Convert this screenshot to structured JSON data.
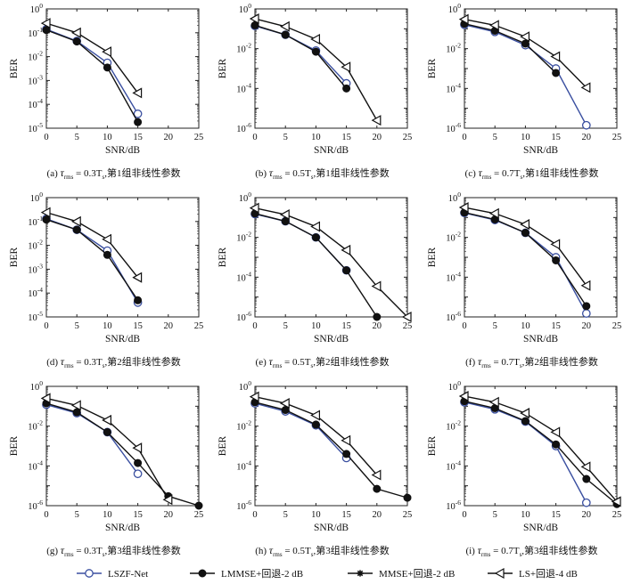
{
  "labels": {
    "ylabel": "BER",
    "xlabel": "SNR/dB"
  },
  "legend": [
    {
      "name": "LSZF-Net",
      "marker": "circle-open",
      "color": "#3a4fa0"
    },
    {
      "name": "LMMSE+回退-2 dB",
      "marker": "circle-filled",
      "color": "#111111"
    },
    {
      "name": "MMSE+回退-2 dB",
      "marker": "star",
      "color": "#111111"
    },
    {
      "name": "LS+回退-4 dB",
      "marker": "triangle-left",
      "color": "#111111"
    }
  ],
  "chart_data": [
    {
      "type": "line",
      "panel": "a",
      "caption": {
        "prefix": "(a) ",
        "tau": "τ",
        "sub": "rms",
        "eq": " = 0.3T",
        "ts": "s",
        "suffix": ",第1组非线性参数"
      },
      "x": [
        0,
        5,
        10,
        15,
        20,
        25
      ],
      "xlim": [
        0,
        25
      ],
      "xticks": [
        0,
        5,
        10,
        15,
        20,
        25
      ],
      "ylim_exp": [
        -5,
        0
      ],
      "ytick_exps": [
        -5,
        -4,
        -3,
        -2,
        -1,
        0
      ],
      "series": [
        {
          "name": "LSZF-Net",
          "values": [
            0.14,
            0.045,
            0.0055,
            4e-05,
            null,
            null
          ]
        },
        {
          "name": "LMMSE+回退-2 dB",
          "values": [
            0.13,
            0.043,
            0.0035,
            1.8e-05,
            null,
            null
          ]
        },
        {
          "name": "LS+回退-4 dB",
          "values": [
            0.25,
            0.1,
            0.016,
            0.0003,
            null,
            null
          ]
        }
      ]
    },
    {
      "type": "line",
      "panel": "b",
      "caption": {
        "prefix": "(b) ",
        "tau": "τ",
        "sub": "rms",
        "eq": " = 0.5T",
        "ts": "s",
        "suffix": ",第1组非线性参数"
      },
      "x": [
        0,
        5,
        10,
        15,
        20,
        25
      ],
      "xlim": [
        0,
        25
      ],
      "xticks": [
        0,
        5,
        10,
        15,
        20,
        25
      ],
      "ylim_exp": [
        -6,
        0
      ],
      "ytick_exps": [
        -6,
        -4,
        -2,
        0
      ],
      "series": [
        {
          "name": "LSZF-Net",
          "values": [
            0.14,
            0.05,
            0.008,
            0.00018,
            null,
            null
          ]
        },
        {
          "name": "LMMSE+回退-2 dB",
          "values": [
            0.15,
            0.05,
            0.007,
            0.0001,
            null,
            null
          ]
        },
        {
          "name": "LS+回退-4 dB",
          "values": [
            0.32,
            0.13,
            0.03,
            0.0012,
            2.5e-06,
            null
          ]
        }
      ]
    },
    {
      "type": "line",
      "panel": "c",
      "caption": {
        "prefix": "(c) ",
        "tau": "τ",
        "sub": "rms",
        "eq": " = 0.7T",
        "ts": "s",
        "suffix": ",第1组非线性参数"
      },
      "x": [
        0,
        5,
        10,
        15,
        20,
        25
      ],
      "xlim": [
        0,
        25
      ],
      "xticks": [
        0,
        5,
        10,
        15,
        20,
        25
      ],
      "ylim_exp": [
        -6,
        0
      ],
      "ytick_exps": [
        -6,
        -4,
        -2,
        0
      ],
      "series": [
        {
          "name": "LSZF-Net",
          "values": [
            0.16,
            0.07,
            0.015,
            0.001,
            1.4e-06,
            null
          ]
        },
        {
          "name": "LMMSE+回退-2 dB",
          "values": [
            0.18,
            0.08,
            0.018,
            0.0006,
            null,
            null
          ]
        },
        {
          "name": "LS+回退-4 dB",
          "values": [
            0.3,
            0.15,
            0.04,
            0.004,
            0.00011,
            null
          ]
        }
      ]
    },
    {
      "type": "line",
      "panel": "d",
      "caption": {
        "prefix": "(d) ",
        "tau": "τ",
        "sub": "rms",
        "eq": " = 0.3T",
        "ts": "s",
        "suffix": ",第2组非线性参数"
      },
      "x": [
        0,
        5,
        10,
        15,
        20,
        25
      ],
      "xlim": [
        0,
        25
      ],
      "xticks": [
        0,
        5,
        10,
        15,
        20,
        25
      ],
      "ylim_exp": [
        -5,
        0
      ],
      "ytick_exps": [
        -5,
        -4,
        -3,
        -2,
        -1,
        0
      ],
      "series": [
        {
          "name": "LSZF-Net",
          "values": [
            0.13,
            0.045,
            0.006,
            4e-05,
            null,
            null
          ]
        },
        {
          "name": "LMMSE+回退-2 dB",
          "values": [
            0.12,
            0.045,
            0.004,
            5e-05,
            null,
            null
          ]
        },
        {
          "name": "LS+回退-4 dB",
          "values": [
            0.24,
            0.1,
            0.018,
            0.00045,
            null,
            null
          ]
        }
      ]
    },
    {
      "type": "line",
      "panel": "e",
      "caption": {
        "prefix": "(e) ",
        "tau": "τ",
        "sub": "rms",
        "eq": " = 0.5T",
        "ts": "s",
        "suffix": ",第2组非线性参数"
      },
      "x": [
        0,
        5,
        10,
        15,
        20,
        25
      ],
      "xlim": [
        0,
        25
      ],
      "xticks": [
        0,
        5,
        10,
        15,
        20,
        25
      ],
      "ylim_exp": [
        -6,
        0
      ],
      "ytick_exps": [
        -6,
        -4,
        -2,
        0
      ],
      "series": [
        {
          "name": "LSZF-Net",
          "values": [
            0.15,
            0.065,
            0.01,
            0.00022,
            null,
            null
          ]
        },
        {
          "name": "LMMSE+回退-2 dB",
          "values": [
            0.16,
            0.065,
            0.01,
            0.00022,
            1e-06,
            null
          ]
        },
        {
          "name": "LS+回退-4 dB",
          "values": [
            0.3,
            0.14,
            0.035,
            0.0023,
            3.5e-05,
            1e-06
          ]
        }
      ]
    },
    {
      "type": "line",
      "panel": "f",
      "caption": {
        "prefix": "(f) ",
        "tau": "τ",
        "sub": "rms",
        "eq": " = 0.7T",
        "ts": "s",
        "suffix": ",第2组非线性参数"
      },
      "x": [
        0,
        5,
        10,
        15,
        20,
        25
      ],
      "xlim": [
        0,
        25
      ],
      "xticks": [
        0,
        5,
        10,
        15,
        20,
        25
      ],
      "ylim_exp": [
        -6,
        0
      ],
      "ytick_exps": [
        -6,
        -4,
        -2,
        0
      ],
      "series": [
        {
          "name": "LSZF-Net",
          "values": [
            0.17,
            0.075,
            0.017,
            0.001,
            1.5e-06,
            null
          ]
        },
        {
          "name": "LMMSE+回退-2 dB",
          "values": [
            0.18,
            0.08,
            0.017,
            0.0007,
            3.5e-06,
            null
          ]
        },
        {
          "name": "LS+回退-4 dB",
          "values": [
            0.32,
            0.16,
            0.045,
            0.0045,
            3.8e-05,
            null
          ]
        }
      ]
    },
    {
      "type": "line",
      "panel": "g",
      "caption": {
        "prefix": "(g) ",
        "tau": "τ",
        "sub": "rms",
        "eq": " = 0.3T",
        "ts": "s",
        "suffix": ",第3组非线性参数"
      },
      "x": [
        0,
        5,
        10,
        15,
        20,
        25
      ],
      "xlim": [
        0,
        25
      ],
      "xticks": [
        0,
        5,
        10,
        15,
        20,
        25
      ],
      "ylim_exp": [
        -6,
        0
      ],
      "ytick_exps": [
        -6,
        -4,
        -2,
        0
      ],
      "series": [
        {
          "name": "LSZF-Net",
          "values": [
            0.12,
            0.045,
            0.005,
            4e-05,
            null,
            null
          ]
        },
        {
          "name": "LMMSE+回退-2 dB",
          "values": [
            0.14,
            0.05,
            0.005,
            0.00014,
            3e-06,
            1e-06
          ]
        },
        {
          "name": "LS+回退-4 dB",
          "values": [
            0.25,
            0.11,
            0.02,
            0.0008,
            2e-06,
            null
          ]
        }
      ]
    },
    {
      "type": "line",
      "panel": "h",
      "caption": {
        "prefix": "(h) ",
        "tau": "τ",
        "sub": "rms",
        "eq": " = 0.5T",
        "ts": "s",
        "suffix": ",第3组非线性参数"
      },
      "x": [
        0,
        5,
        10,
        15,
        20,
        25
      ],
      "xlim": [
        0,
        25
      ],
      "xticks": [
        0,
        5,
        10,
        15,
        20,
        25
      ],
      "ylim_exp": [
        -6,
        0
      ],
      "ytick_exps": [
        -6,
        -4,
        -2,
        0
      ],
      "series": [
        {
          "name": "LSZF-Net",
          "values": [
            0.14,
            0.055,
            0.011,
            0.00025,
            null,
            null
          ]
        },
        {
          "name": "LMMSE+回退-2 dB",
          "values": [
            0.16,
            0.065,
            0.012,
            0.0004,
            7e-06,
            2.5e-06
          ]
        },
        {
          "name": "LS+回退-4 dB",
          "values": [
            0.3,
            0.14,
            0.035,
            0.0019,
            3.5e-05,
            null
          ]
        }
      ]
    },
    {
      "type": "line",
      "panel": "i",
      "caption": {
        "prefix": "(i) ",
        "tau": "τ",
        "sub": "rms",
        "eq": " = 0.7T",
        "ts": "s",
        "suffix": ",第3组非线性参数"
      },
      "x": [
        0,
        5,
        10,
        15,
        20,
        25
      ],
      "xlim": [
        0,
        25
      ],
      "xticks": [
        0,
        5,
        10,
        15,
        20,
        25
      ],
      "ylim_exp": [
        -6,
        0
      ],
      "ytick_exps": [
        -6,
        -4,
        -2,
        0
      ],
      "series": [
        {
          "name": "LSZF-Net",
          "values": [
            0.16,
            0.07,
            0.017,
            0.001,
            1.4e-06,
            null
          ]
        },
        {
          "name": "LMMSE+回退-2 dB",
          "values": [
            0.18,
            0.08,
            0.018,
            0.0012,
            2.2e-05,
            1.2e-06
          ]
        },
        {
          "name": "MMSE+回退-2 dB",
          "values": [
            null,
            null,
            null,
            null,
            null,
            1.6e-06
          ]
        },
        {
          "name": "LS+回退-4 dB",
          "values": [
            0.32,
            0.16,
            0.045,
            0.005,
            9e-05,
            1.6e-06
          ]
        }
      ]
    }
  ]
}
